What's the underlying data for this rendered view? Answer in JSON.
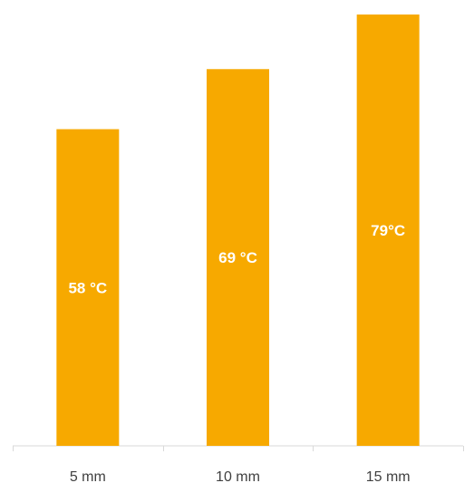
{
  "chart_data": {
    "type": "bar",
    "categories": [
      "5 mm",
      "10 mm",
      "15 mm"
    ],
    "values": [
      58,
      69,
      79
    ],
    "data_labels": [
      "58 °C",
      "69 °C",
      "79°C"
    ],
    "title": "",
    "xlabel": "",
    "ylabel": "",
    "ylim": [
      0,
      80
    ],
    "grid": false,
    "legend": "none",
    "colors": {
      "bar": "#F7A900",
      "axis": "#D9D9D9",
      "tick_text": "#404040",
      "label_text": "#FFFFFF"
    }
  }
}
